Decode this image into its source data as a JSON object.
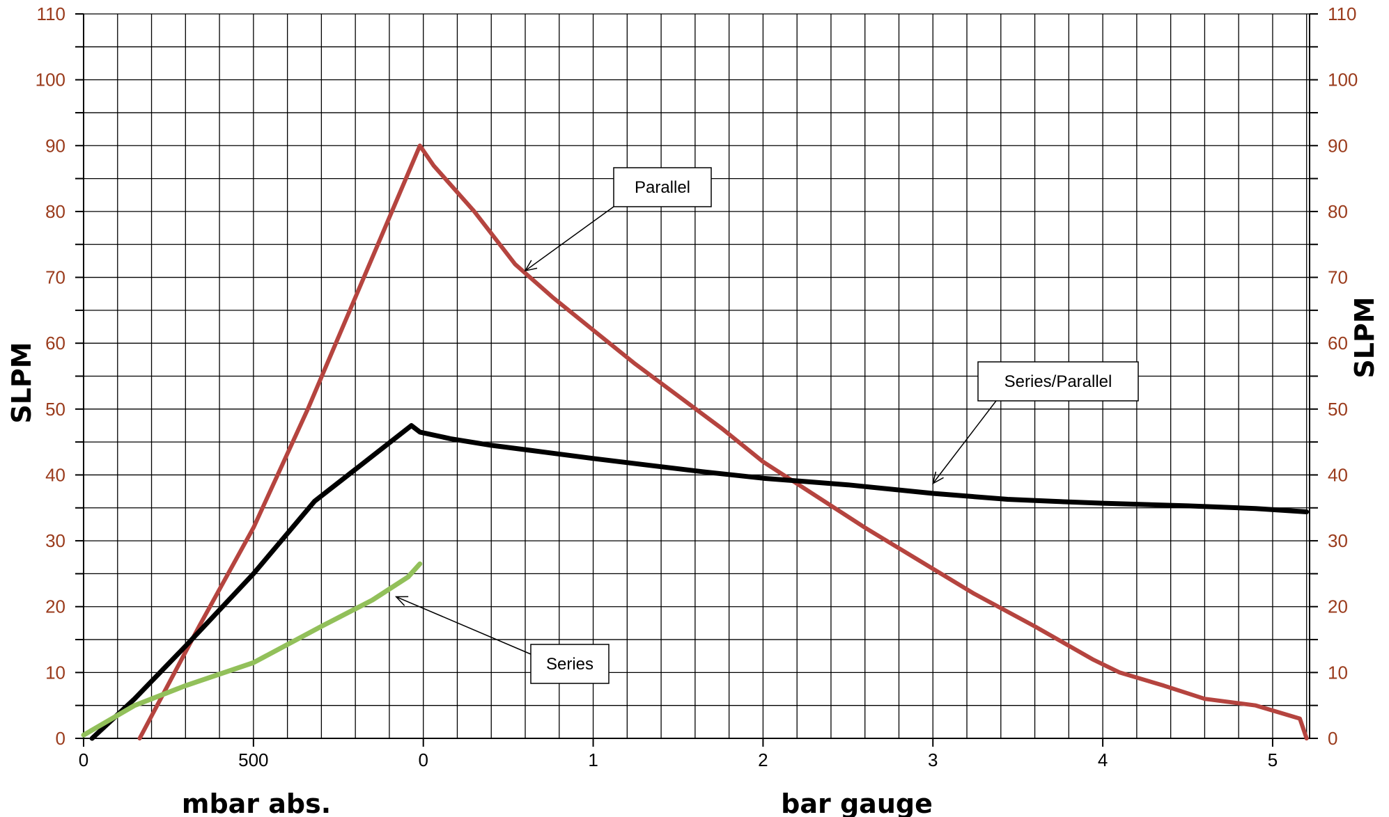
{
  "chart_data": {
    "type": "line",
    "title": "",
    "ylabel_left": "SLPM",
    "ylabel_right": "SLPM",
    "xlabel_left_region": "mbar abs.",
    "xlabel_right_region": "bar gauge",
    "ylim": [
      0,
      110
    ],
    "y_ticks": [
      "0",
      "10",
      "20",
      "30",
      "40",
      "50",
      "60",
      "70",
      "80",
      "90",
      "100",
      "110"
    ],
    "grid": true,
    "x_ticks": [
      {
        "u": 0,
        "label": "0"
      },
      {
        "u": 0.5,
        "label": "500"
      },
      {
        "u": 1.0,
        "label": "0"
      },
      {
        "u": 1.5,
        "label": "1"
      },
      {
        "u": 2.0,
        "label": "2"
      },
      {
        "u": 2.5,
        "label": "3"
      },
      {
        "u": 3.0,
        "label": "4"
      },
      {
        "u": 3.5,
        "label": "5"
      }
    ],
    "x_range": [
      0,
      3.6
    ],
    "colors": {
      "parallel": "#b5443f",
      "series_parallel": "#000000",
      "series": "#92c05a",
      "y_tick_text": "#9a3b1c",
      "grid": "#000000"
    },
    "series": [
      {
        "name": "Parallel",
        "key": "parallel",
        "points": [
          [
            0.165,
            0
          ],
          [
            0.34,
            17
          ],
          [
            0.5,
            32
          ],
          [
            0.66,
            50
          ],
          [
            0.825,
            70
          ],
          [
            0.99,
            90
          ],
          [
            1.03,
            87
          ],
          [
            1.15,
            80
          ],
          [
            1.27,
            72
          ],
          [
            1.38,
            67
          ],
          [
            1.5,
            62
          ],
          [
            1.62,
            57
          ],
          [
            1.75,
            52
          ],
          [
            1.88,
            47
          ],
          [
            2.0,
            42
          ],
          [
            2.15,
            37
          ],
          [
            2.3,
            32
          ],
          [
            2.46,
            27
          ],
          [
            2.62,
            22
          ],
          [
            2.8,
            17
          ],
          [
            2.97,
            12
          ],
          [
            3.05,
            10
          ],
          [
            3.18,
            8
          ],
          [
            3.3,
            6
          ],
          [
            3.45,
            5
          ],
          [
            3.58,
            3
          ],
          [
            3.6,
            0
          ]
        ]
      },
      {
        "name": "Series/Parallel",
        "key": "series_parallel",
        "points": [
          [
            0.025,
            0
          ],
          [
            0.15,
            6
          ],
          [
            0.3,
            14
          ],
          [
            0.5,
            25
          ],
          [
            0.68,
            36
          ],
          [
            0.965,
            47.5
          ],
          [
            0.99,
            46.5
          ],
          [
            1.08,
            45.5
          ],
          [
            1.2,
            44.5
          ],
          [
            1.35,
            43.5
          ],
          [
            1.5,
            42.5
          ],
          [
            1.66,
            41.5
          ],
          [
            1.82,
            40.5
          ],
          [
            2.0,
            39.5
          ],
          [
            2.25,
            38.5
          ],
          [
            2.5,
            37.2
          ],
          [
            2.72,
            36.3
          ],
          [
            2.85,
            36.0
          ],
          [
            3.0,
            35.7
          ],
          [
            3.25,
            35.3
          ],
          [
            3.45,
            34.9
          ],
          [
            3.6,
            34.4
          ]
        ]
      },
      {
        "name": "Series",
        "key": "series",
        "points": [
          [
            0.0,
            0.5
          ],
          [
            0.15,
            5
          ],
          [
            0.3,
            8
          ],
          [
            0.5,
            11.5
          ],
          [
            0.7,
            17
          ],
          [
            0.85,
            21
          ],
          [
            0.955,
            24.5
          ],
          [
            0.99,
            26.5
          ]
        ]
      }
    ],
    "annotations": [
      {
        "text": "Parallel",
        "key": "parallel"
      },
      {
        "text": "Series/Parallel",
        "key": "series_parallel"
      },
      {
        "text": "Series",
        "key": "series"
      }
    ]
  }
}
